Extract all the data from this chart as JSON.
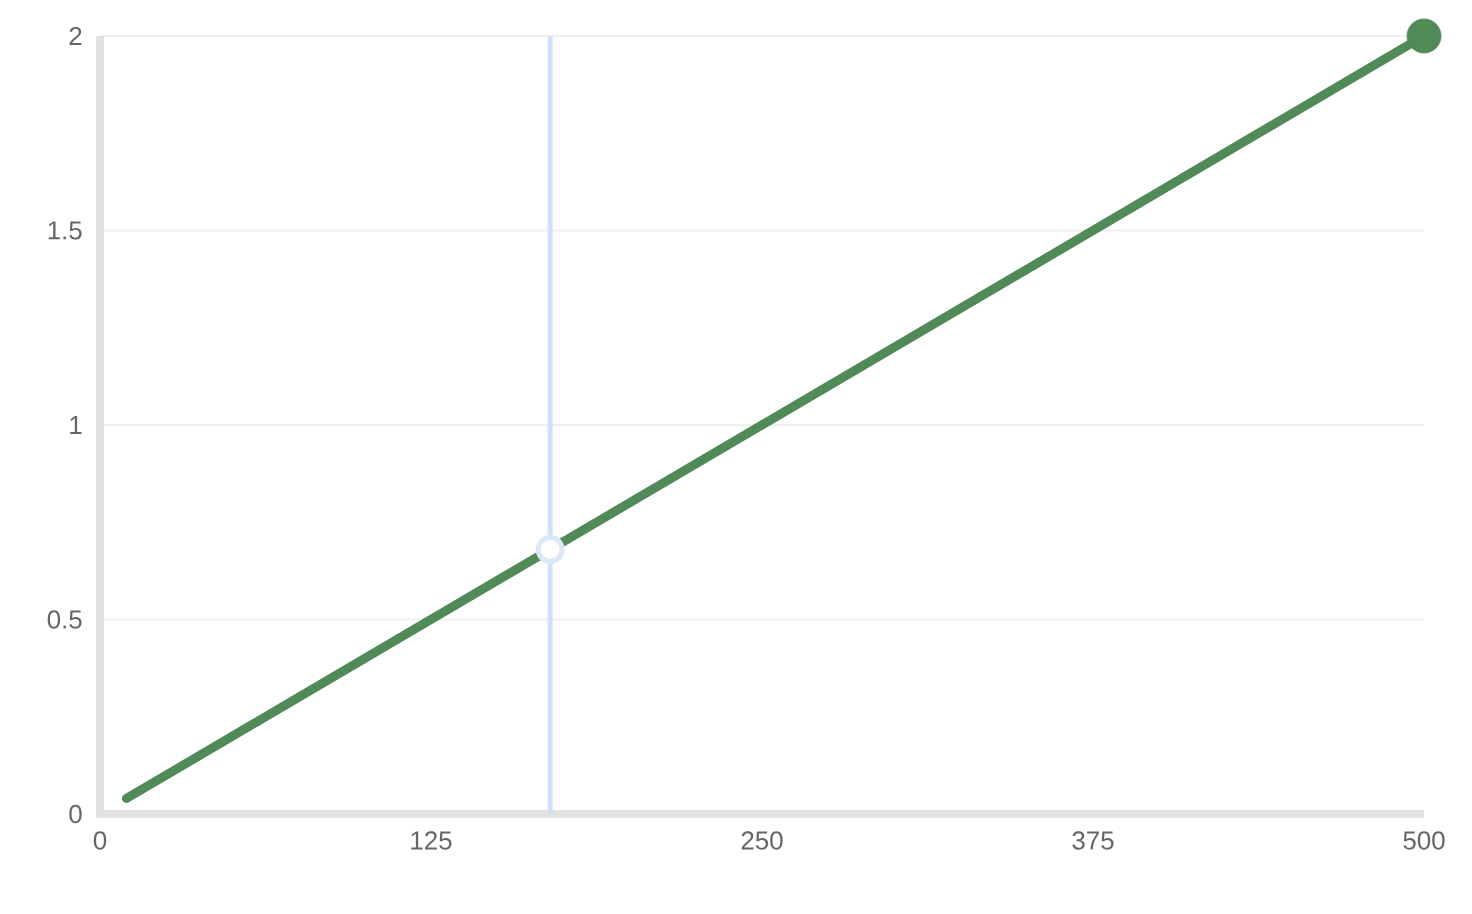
{
  "chart_data": {
    "type": "line",
    "series": [
      {
        "color": "#4f8a57",
        "x": [
          10,
          500
        ],
        "values": [
          0.04,
          2
        ],
        "marker": "none"
      },
      {
        "type": "scatter",
        "color": "#4f8a57",
        "x": [
          500
        ],
        "values": [
          2
        ],
        "marker": "circle"
      },
      {
        "type": "scatter",
        "color": "#dbe8f8",
        "x": [
          170
        ],
        "values": [
          0.68
        ],
        "marker": "circle"
      }
    ],
    "xlim": [
      0,
      500
    ],
    "xticks": [
      0,
      125,
      250,
      375,
      500
    ],
    "ylim": [
      0,
      2
    ],
    "yticks": [
      0,
      0.5,
      1,
      1.5,
      2
    ],
    "grid": "y",
    "ref_lines": [
      {
        "axis": "x",
        "value": 170,
        "color": "#cfe2f8"
      }
    ]
  }
}
